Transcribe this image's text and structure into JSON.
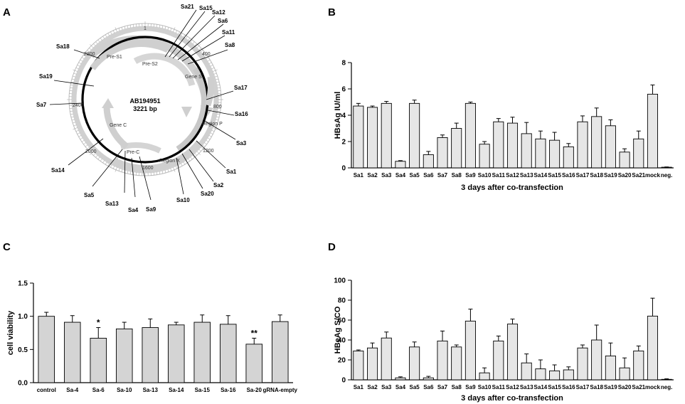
{
  "panel_letters": {
    "a": "A",
    "b": "B",
    "c": "C",
    "d": "D"
  },
  "plasmid": {
    "name": "AB194951",
    "size": "3221 bp",
    "ring_numbers": [
      "1",
      "400",
      "800",
      "1200",
      "1600",
      "2000",
      "2400",
      "2800"
    ],
    "segments": [
      "Pre-S1",
      "Pre-S2",
      "Gene S",
      "Region P",
      "Region X",
      "Pre-C",
      "Gene C"
    ],
    "sites": [
      "Sa21",
      "Sa15",
      "Sa12",
      "Sa6",
      "Sa11",
      "Sa8",
      "Sa18",
      "Sa19",
      "Sa17",
      "Sa7",
      "Sa16",
      "Sa3",
      "Sa14",
      "Sa1",
      "Sa2",
      "Sa20",
      "Sa10",
      "Sa9",
      "Sa4",
      "Sa13",
      "Sa5"
    ]
  },
  "chart_data": [
    {
      "panel": "B",
      "type": "bar",
      "title": "",
      "xlabel": "3 days after co-transfection",
      "ylabel": "HBsAg IU/ml",
      "ylim": [
        0,
        8
      ],
      "yticks": [
        "0",
        "2",
        "4",
        "6",
        "8"
      ],
      "categories": [
        "Sa1",
        "Sa2",
        "Sa3",
        "Sa4",
        "Sa5",
        "Sa6",
        "Sa7",
        "Sa8",
        "Sa9",
        "Sa10",
        "Sa11",
        "Sa12",
        "Sa13",
        "Sa14",
        "Sa15",
        "Sa16",
        "Sa17",
        "Sa18",
        "Sa19",
        "Sa20",
        "Sa21",
        "mock",
        "neg."
      ],
      "values": [
        4.7,
        4.6,
        4.9,
        0.5,
        4.9,
        1.0,
        2.3,
        3.0,
        4.9,
        1.8,
        3.5,
        3.4,
        2.6,
        2.2,
        2.1,
        1.6,
        3.5,
        3.9,
        3.2,
        1.2,
        2.2,
        5.6,
        0.05
      ],
      "errors": [
        0.2,
        0.1,
        0.15,
        0.05,
        0.25,
        0.25,
        0.2,
        0.4,
        0.1,
        0.2,
        0.25,
        0.45,
        0.85,
        0.6,
        0.6,
        0.25,
        0.45,
        0.65,
        0.45,
        0.25,
        0.6,
        0.7,
        0.02
      ]
    },
    {
      "panel": "C",
      "type": "bar",
      "title": "",
      "xlabel": "",
      "ylabel": "cell viability",
      "ylim": [
        0,
        1.5
      ],
      "yticks": [
        "0.0",
        "0.5",
        "1.0",
        "1.5"
      ],
      "categories": [
        "control",
        "Sa-4",
        "Sa-6",
        "Sa-10",
        "Sa-13",
        "Sa-14",
        "Sa-15",
        "Sa-16",
        "Sa-20",
        "gRNA-empty"
      ],
      "values": [
        1.0,
        0.91,
        0.67,
        0.81,
        0.83,
        0.87,
        0.91,
        0.88,
        0.58,
        0.92
      ],
      "errors": [
        0.06,
        0.1,
        0.16,
        0.1,
        0.13,
        0.04,
        0.11,
        0.13,
        0.09,
        0.1
      ],
      "annotations": [
        "",
        "",
        "*",
        "",
        "",
        "",
        "",
        "",
        "**",
        ""
      ]
    },
    {
      "panel": "D",
      "type": "bar",
      "title": "",
      "xlabel": "3 days after co-transfection",
      "ylabel": "HBeAg S/CO",
      "ylim": [
        0,
        100
      ],
      "yticks": [
        "0",
        "20",
        "40",
        "60",
        "80",
        "100"
      ],
      "categories": [
        "Sa1",
        "Sa2",
        "Sa3",
        "Sa4",
        "Sa5",
        "Sa6",
        "Sa7",
        "Sa8",
        "Sa9",
        "Sa10",
        "Sa11",
        "Sa12",
        "Sa13",
        "Sa14",
        "Sa15",
        "Sa16",
        "Sa17",
        "Sa18",
        "Sa19",
        "Sa20",
        "Sa21",
        "mock",
        "neg."
      ],
      "values": [
        29,
        32,
        42,
        2,
        33,
        2,
        39,
        33,
        59,
        7,
        39,
        56,
        17,
        11,
        9,
        10,
        32,
        40,
        24,
        12,
        29,
        64,
        0.5
      ],
      "errors": [
        1,
        5,
        6,
        1,
        5,
        1.5,
        10,
        2,
        12,
        5,
        5,
        5,
        9,
        9,
        6,
        3,
        3,
        15,
        13,
        10,
        5,
        18,
        0.5
      ]
    }
  ]
}
